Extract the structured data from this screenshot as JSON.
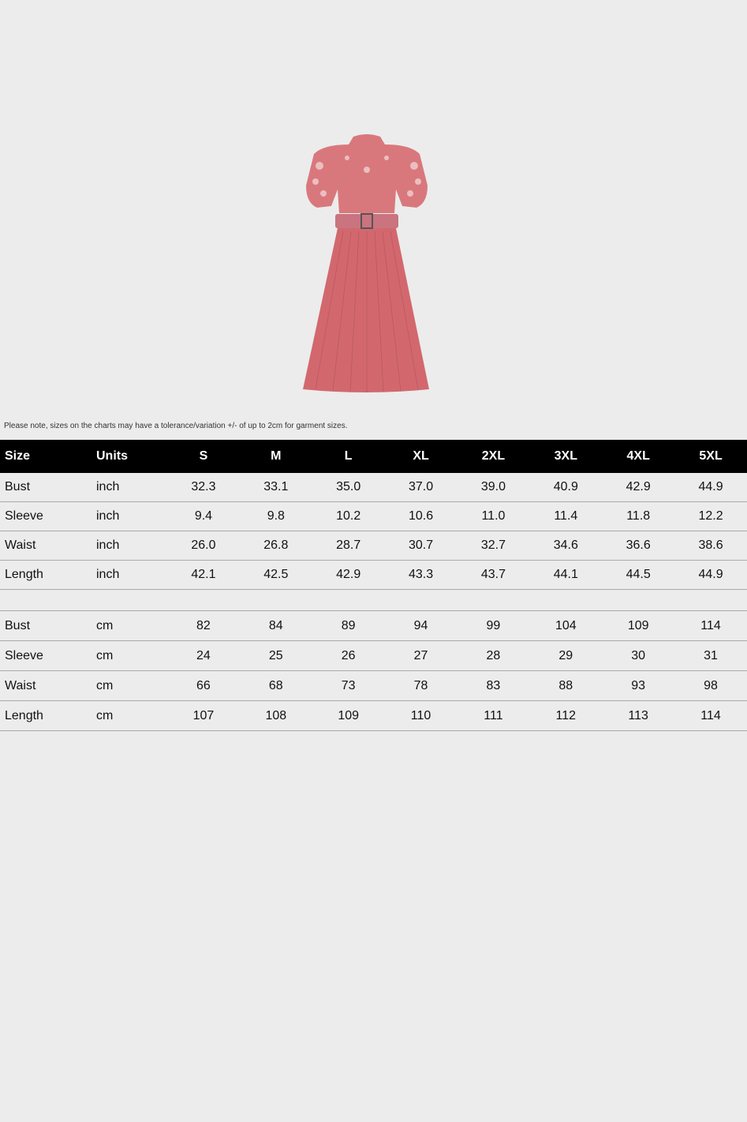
{
  "product_image": {
    "alt": "pink lace pleated dress with belt",
    "color": "#d9757a"
  },
  "note": "Please note, sizes on the charts may have a tolerance/variation +/- of up to 2cm for garment sizes.",
  "table": {
    "headers": [
      "Size",
      "Units",
      "S",
      "M",
      "L",
      "XL",
      "2XL",
      "3XL",
      "4XL",
      "5XL"
    ],
    "inch_rows": [
      {
        "label": "Bust",
        "unit": "inch",
        "values": [
          "32.3",
          "33.1",
          "35.0",
          "37.0",
          "39.0",
          "40.9",
          "42.9",
          "44.9"
        ]
      },
      {
        "label": "Sleeve",
        "unit": "inch",
        "values": [
          "9.4",
          "9.8",
          "10.2",
          "10.6",
          "11.0",
          "11.4",
          "11.8",
          "12.2"
        ]
      },
      {
        "label": "Waist",
        "unit": "inch",
        "values": [
          "26.0",
          "26.8",
          "28.7",
          "30.7",
          "32.7",
          "34.6",
          "36.6",
          "38.6"
        ]
      },
      {
        "label": "Length",
        "unit": "inch",
        "values": [
          "42.1",
          "42.5",
          "42.9",
          "43.3",
          "43.7",
          "44.1",
          "44.5",
          "44.9"
        ]
      }
    ],
    "cm_rows": [
      {
        "label": "Bust",
        "unit": "cm",
        "values": [
          "82",
          "84",
          "89",
          "94",
          "99",
          "104",
          "109",
          "114"
        ]
      },
      {
        "label": "Sleeve",
        "unit": "cm",
        "values": [
          "24",
          "25",
          "26",
          "27",
          "28",
          "29",
          "30",
          "31"
        ]
      },
      {
        "label": "Waist",
        "unit": "cm",
        "values": [
          "66",
          "68",
          "73",
          "78",
          "83",
          "88",
          "93",
          "98"
        ]
      },
      {
        "label": "Length",
        "unit": "cm",
        "values": [
          "107",
          "108",
          "109",
          "110",
          "111",
          "112",
          "113",
          "114"
        ]
      }
    ]
  }
}
